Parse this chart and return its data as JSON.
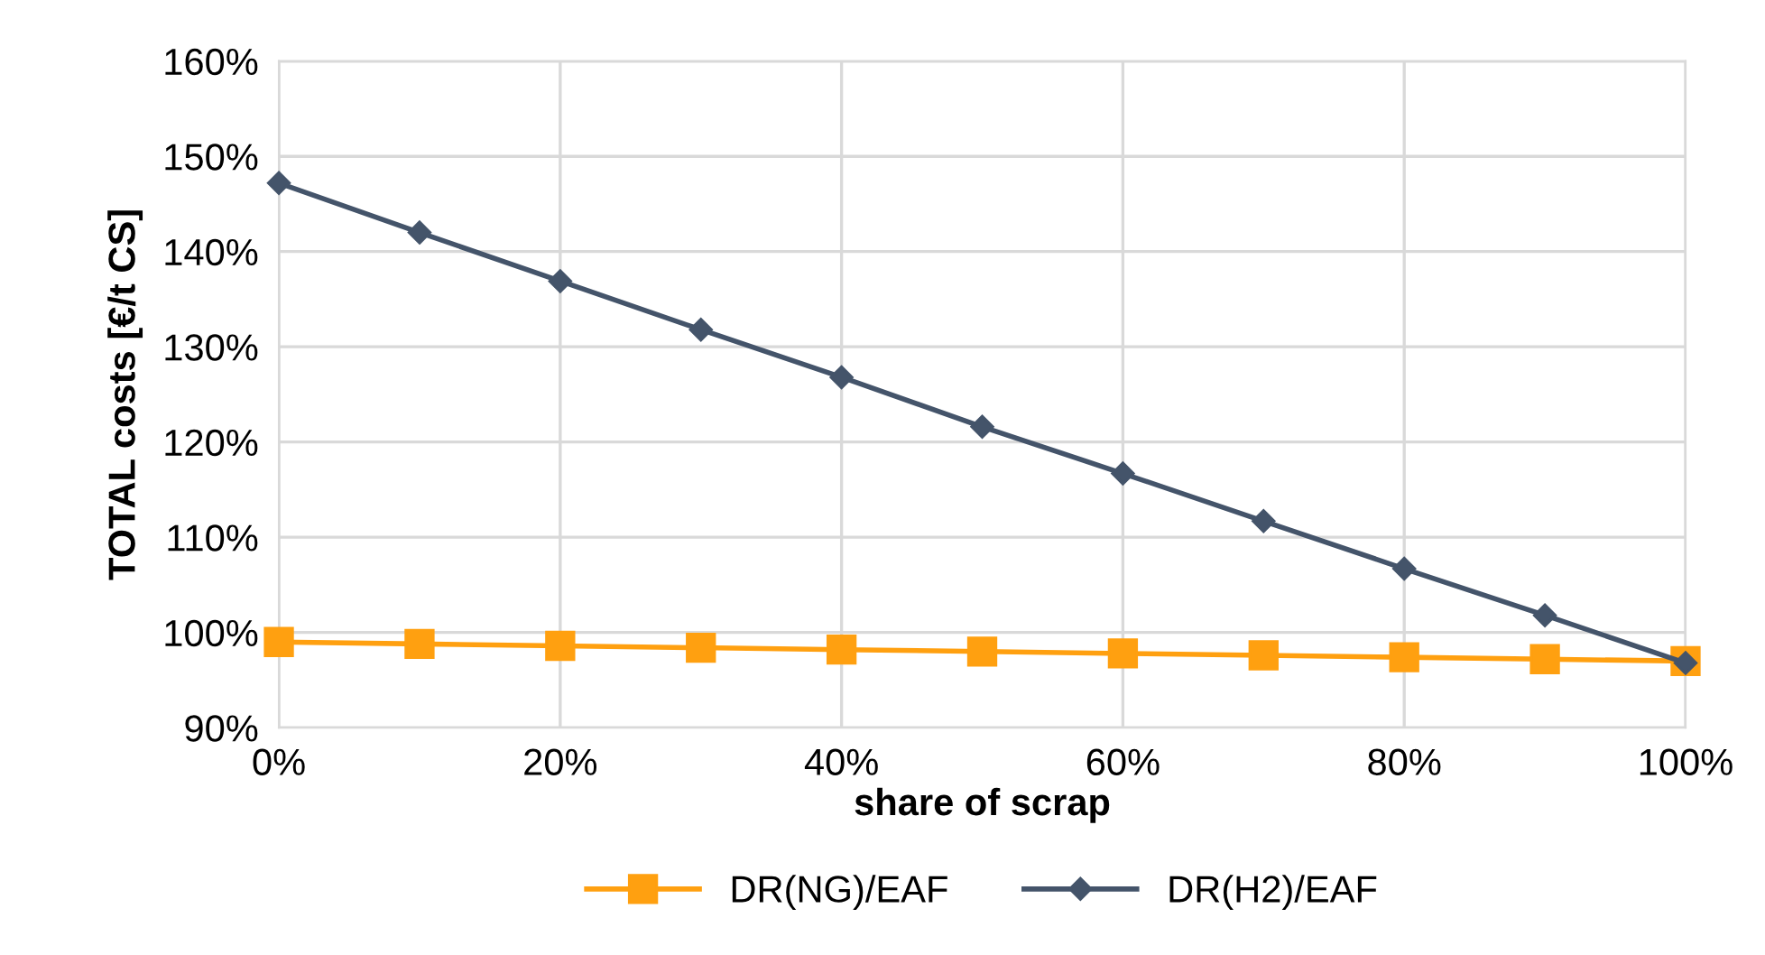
{
  "chart_data": {
    "type": "line",
    "xlabel": "share of scrap",
    "ylabel": "TOTAL costs [€/t CS]",
    "x": [
      0,
      10,
      20,
      30,
      40,
      50,
      60,
      70,
      80,
      90,
      100
    ],
    "series": [
      {
        "name": "DR(NG)/EAF",
        "color": "#ffa010",
        "marker": "square",
        "values": [
          99.0,
          98.8,
          98.6,
          98.4,
          98.2,
          98.0,
          97.8,
          97.6,
          97.4,
          97.2,
          97.0
        ]
      },
      {
        "name": "DR(H2)/EAF",
        "color": "#44546a",
        "marker": "diamond",
        "values": [
          147.2,
          142.0,
          136.9,
          131.8,
          126.8,
          121.6,
          116.7,
          111.7,
          106.7,
          101.8,
          96.8
        ]
      }
    ],
    "xlim": [
      0,
      100
    ],
    "xticks": [
      {
        "value": 0,
        "label": "0%"
      },
      {
        "value": 20,
        "label": "20%"
      },
      {
        "value": 40,
        "label": "40%"
      },
      {
        "value": 60,
        "label": "60%"
      },
      {
        "value": 80,
        "label": "80%"
      },
      {
        "value": 100,
        "label": "100%"
      }
    ],
    "ylim": [
      90,
      160
    ],
    "yticks": [
      {
        "value": 90,
        "label": "90%"
      },
      {
        "value": 100,
        "label": "100%"
      },
      {
        "value": 110,
        "label": "110%"
      },
      {
        "value": 120,
        "label": "120%"
      },
      {
        "value": 130,
        "label": "130%"
      },
      {
        "value": 140,
        "label": "140%"
      },
      {
        "value": 150,
        "label": "150%"
      },
      {
        "value": 160,
        "label": "160%"
      }
    ],
    "grid": true,
    "legend": "bottom"
  }
}
